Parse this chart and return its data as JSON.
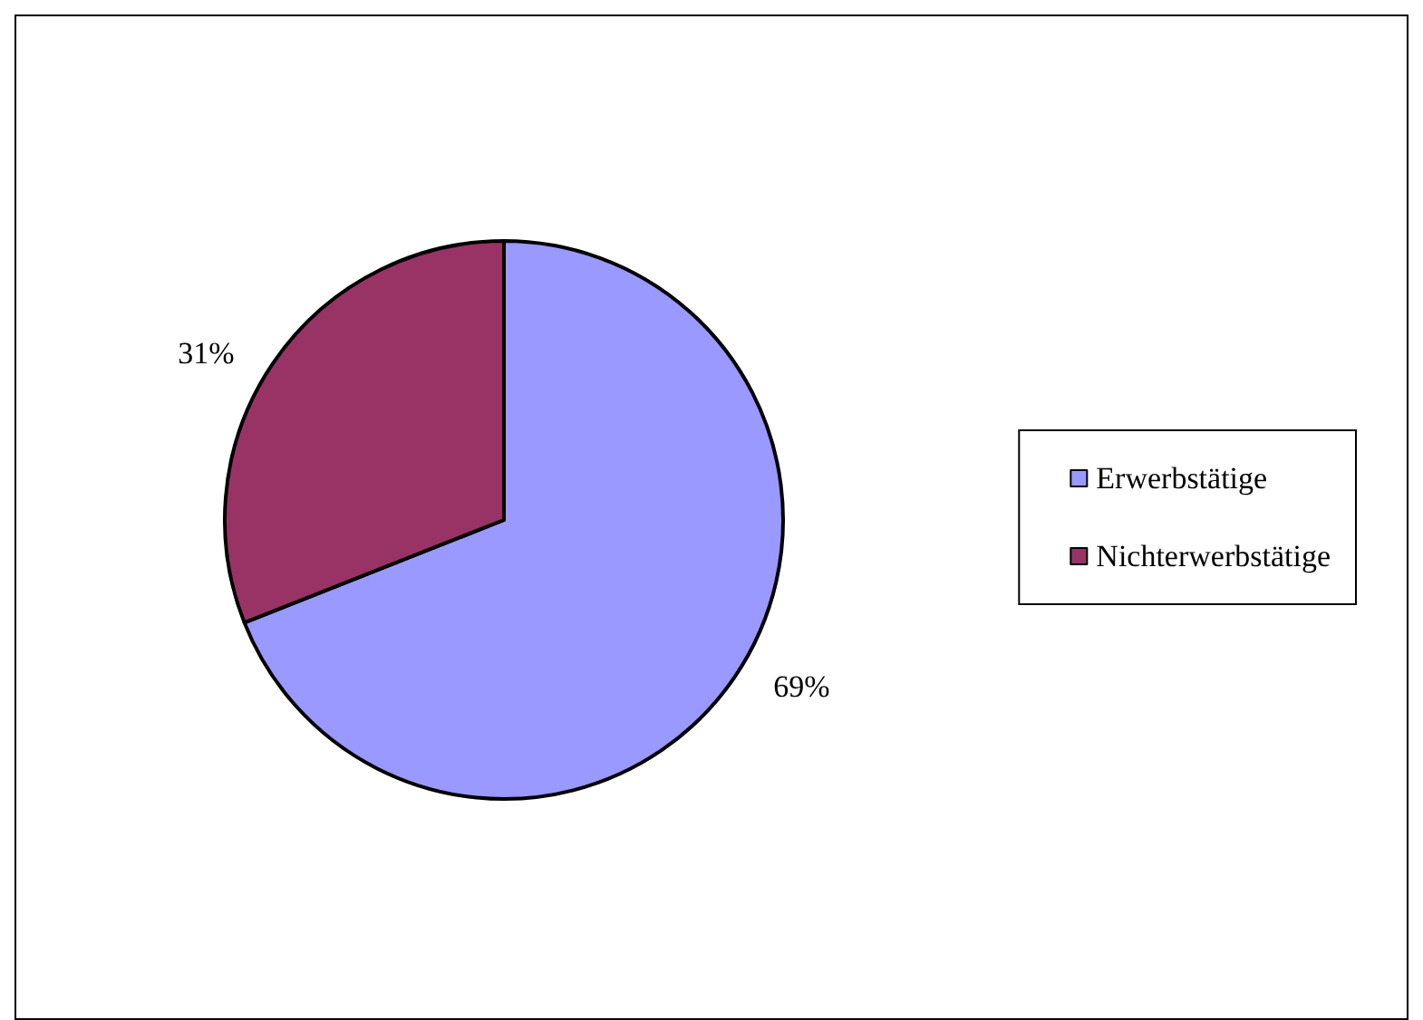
{
  "chart_data": {
    "type": "pie",
    "categories": [
      "Erwerbstätige",
      "Nichterwerbstätige"
    ],
    "values": [
      69,
      31
    ],
    "colors": [
      "#9999ff",
      "#993366"
    ],
    "value_labels": [
      "69%",
      "31%"
    ],
    "legend": "right"
  }
}
